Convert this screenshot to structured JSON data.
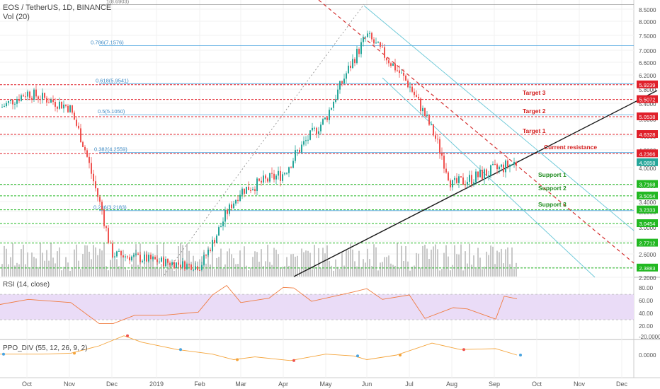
{
  "header": {
    "symbol": "EOS / TetherUS, 1D, BINANCE",
    "vol_label": "Vol (20)"
  },
  "price_axis": {
    "ticks": [
      "8.5000",
      "8.0000",
      "7.5000",
      "7.0000",
      "6.6000",
      "6.2000",
      "5.8000",
      "5.4000",
      "5.0000",
      "4.6000",
      "4.3000",
      "4.0000",
      "3.7000",
      "3.4000",
      "3.2000",
      "3.0000",
      "2.8000",
      "2.6000",
      "2.4000",
      "2.2000"
    ]
  },
  "time_axis": {
    "labels": [
      "Oct",
      "Nov",
      "Dec",
      "2019",
      "Feb",
      "Mar",
      "Apr",
      "May",
      "Jun",
      "Jul",
      "Aug",
      "Sep",
      "Oct",
      "Nov",
      "Dec"
    ]
  },
  "fib_labels": {
    "f1": "1(8.6903)",
    "f786": "0.786(7.1576)",
    "f618": "0.618(5.9541)",
    "f5": "0.5(5.1050)",
    "f382": "0.382(4.2559)",
    "f236": "0.236(3.2183)"
  },
  "level_labels": [
    {
      "text": "5.9239",
      "color": "#e0202a"
    },
    {
      "text": "5.5072",
      "color": "#e0202a"
    },
    {
      "text": "5.0538",
      "color": "#e0202a"
    },
    {
      "text": "4.6328",
      "color": "#e0202a"
    },
    {
      "text": "4.2366",
      "color": "#e0202a"
    },
    {
      "text": "4.0858",
      "color": "#26a69a"
    },
    {
      "text": "3.7168",
      "color": "#22b822"
    },
    {
      "text": "3.5054",
      "color": "#22b822"
    },
    {
      "text": "3.2333",
      "color": "#22b822"
    },
    {
      "text": "3.0454",
      "color": "#22b822"
    },
    {
      "text": "2.7712",
      "color": "#22b822"
    },
    {
      "text": "2.3883",
      "color": "#22b822"
    }
  ],
  "annotations": {
    "target3": "Target 3",
    "target2": "Target 2",
    "target1": "Target 1",
    "current_resistance": "Current resistance",
    "support1": "Support 1",
    "support2": "Support 2",
    "support3": "Support 3"
  },
  "rsi": {
    "label": "RSI (14, close)",
    "ticks": [
      "80.00",
      "60.00",
      "40.00",
      "20.00"
    ]
  },
  "ppo": {
    "label": "PPO_DIV (55, 12, 26, 9, 2)",
    "ticks": [
      "0.0000",
      "-20.0000"
    ]
  },
  "colors": {
    "up": "#26a69a",
    "down": "#ef5350",
    "resistance": "#e0202a",
    "support": "#22b822",
    "fib": "#4aa3df",
    "volume": "#c8c8c8",
    "rsi_line": "#f07b3f",
    "rsi_band": "#eadcf7",
    "ppo_line": "#f4a43b"
  },
  "chart_data": {
    "type": "candlestick",
    "title": "EOS / TetherUS, 1D, BINANCE",
    "price_ticks": [
      8.5,
      8.0,
      7.5,
      7.0,
      6.6,
      6.2,
      5.8,
      5.4,
      5.0,
      4.6,
      4.3,
      4.0,
      3.7,
      3.4,
      3.2,
      3.0,
      2.8,
      2.6,
      2.4,
      2.2
    ],
    "x_axis": [
      "Oct",
      "Nov",
      "Dec",
      "2019",
      "Feb",
      "Mar",
      "Apr",
      "May",
      "Jun",
      "Jul",
      "Aug",
      "Sep",
      "Oct",
      "Nov",
      "Dec"
    ],
    "ylim": [
      2.2,
      8.7
    ],
    "close_path": [
      {
        "x": "Sep",
        "y": 5.3
      },
      {
        "x": "Oct",
        "y": 5.7
      },
      {
        "x": "Nov",
        "y": 5.3
      },
      {
        "x": "Dec",
        "y": 2.6
      },
      {
        "x": "2019",
        "y": 2.5
      },
      {
        "x": "Feb",
        "y": 2.4
      },
      {
        "x": "Mar",
        "y": 3.6
      },
      {
        "x": "Apr",
        "y": 3.9
      },
      {
        "x": "May",
        "y": 5.0
      },
      {
        "x": "Jun",
        "y": 7.5
      },
      {
        "x": "Jul",
        "y": 5.9
      },
      {
        "x": "Aug",
        "y": 3.7
      },
      {
        "x": "Sep",
        "y": 4.09
      }
    ],
    "horizontal_levels": [
      5.9239,
      5.5072,
      5.0538,
      4.6328,
      4.2366,
      3.7168,
      3.5054,
      3.2333,
      3.0454,
      2.7712,
      2.3883
    ],
    "current_price": 4.0858,
    "fibonacci": [
      {
        "ratio": 1,
        "price": 8.6903
      },
      {
        "ratio": 0.786,
        "price": 7.1576
      },
      {
        "ratio": 0.618,
        "price": 5.9541
      },
      {
        "ratio": 0.5,
        "price": 5.105
      },
      {
        "ratio": 0.382,
        "price": 4.2559
      },
      {
        "ratio": 0.236,
        "price": 3.2183
      }
    ],
    "rsi_ticks": [
      80,
      60,
      40,
      20
    ],
    "ppo_ticks": [
      0,
      -20
    ],
    "grid": true
  }
}
